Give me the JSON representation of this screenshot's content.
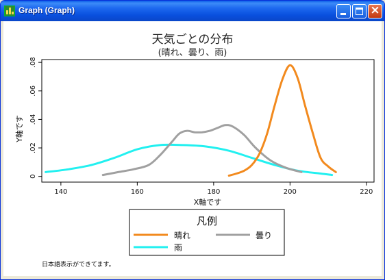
{
  "window": {
    "title": "Graph (Graph)",
    "controls": {
      "minimize": "minimize",
      "maximize": "maximize",
      "close": "×"
    }
  },
  "chart_data": {
    "type": "line",
    "title": "天気ごとの分布",
    "subtitle": "(晴れ、曇り、雨)",
    "xlabel": "X軸です",
    "ylabel": "Y軸です",
    "xlim": [
      135,
      222
    ],
    "ylim": [
      -0.004,
      0.082
    ],
    "xticks": [
      140,
      160,
      180,
      200,
      220
    ],
    "yticks": [
      0,
      0.02,
      0.04,
      0.06,
      0.08
    ],
    "ytick_labels": [
      "0",
      ".02",
      ".04",
      ".06",
      ".08"
    ],
    "grid": false,
    "legend_title": "凡例",
    "legend_position": "bottom",
    "series": [
      {
        "name": "晴れ",
        "color": "#F28A1E",
        "x": [
          184,
          186,
          188,
          190,
          192,
          194,
          196,
          198,
          200,
          202,
          204,
          206,
          208,
          210,
          212
        ],
        "y": [
          0.0005,
          0.002,
          0.004,
          0.008,
          0.016,
          0.03,
          0.05,
          0.068,
          0.078,
          0.069,
          0.049,
          0.03,
          0.013,
          0.007,
          0.003
        ]
      },
      {
        "name": "曇り",
        "color": "#A0A0A0",
        "x": [
          151,
          155,
          159,
          163,
          166,
          169,
          171,
          173,
          175,
          177,
          179,
          181,
          183,
          185,
          188,
          191,
          195,
          199,
          203
        ],
        "y": [
          0.001,
          0.003,
          0.005,
          0.008,
          0.015,
          0.024,
          0.03,
          0.032,
          0.031,
          0.031,
          0.032,
          0.034,
          0.036,
          0.035,
          0.029,
          0.02,
          0.011,
          0.006,
          0.003
        ]
      },
      {
        "name": "雨",
        "color": "#22F0F0",
        "x": [
          136,
          142,
          148,
          154,
          160,
          166,
          172,
          178,
          184,
          190,
          196,
          202,
          208,
          211
        ],
        "y": [
          0.003,
          0.005,
          0.008,
          0.013,
          0.019,
          0.022,
          0.022,
          0.021,
          0.018,
          0.013,
          0.008,
          0.004,
          0.002,
          0.001
        ]
      }
    ]
  },
  "footnote": "日本語表示ができてます。"
}
